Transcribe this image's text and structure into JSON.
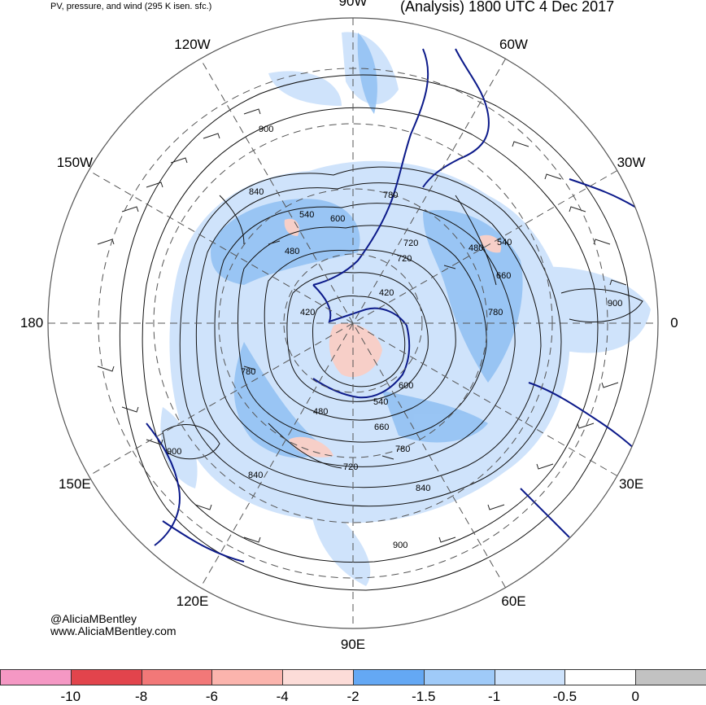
{
  "title_left": "PV, pressure, and wind (295 K isen. sfc.)",
  "title_right": "(Analysis) 1800 UTC 4 Dec 2017",
  "longitude_labels": [
    {
      "text": "90W",
      "angle": 90
    },
    {
      "text": "60W",
      "angle": 60
    },
    {
      "text": "30W",
      "angle": 30
    },
    {
      "text": "0",
      "angle": 0
    },
    {
      "text": "30E",
      "angle": -30
    },
    {
      "text": "60E",
      "angle": -60
    },
    {
      "text": "90E",
      "angle": -90
    },
    {
      "text": "120E",
      "angle": -120
    },
    {
      "text": "150E",
      "angle": -150
    },
    {
      "text": "180",
      "angle": 180
    },
    {
      "text": "150W",
      "angle": 150
    },
    {
      "text": "120W",
      "angle": 120
    }
  ],
  "contour_labels": [
    {
      "text": "900"
    },
    {
      "text": "840"
    },
    {
      "text": "540"
    },
    {
      "text": "600"
    },
    {
      "text": "480"
    },
    {
      "text": "420"
    },
    {
      "text": "780"
    },
    {
      "text": "720"
    },
    {
      "text": "480"
    },
    {
      "text": "540"
    },
    {
      "text": "660"
    },
    {
      "text": "720"
    },
    {
      "text": "780"
    },
    {
      "text": "900"
    },
    {
      "text": "420"
    },
    {
      "text": "600"
    },
    {
      "text": "540"
    },
    {
      "text": "480"
    },
    {
      "text": "660"
    },
    {
      "text": "780"
    },
    {
      "text": "720"
    },
    {
      "text": "840"
    },
    {
      "text": "900"
    },
    {
      "text": "900"
    },
    {
      "text": "840"
    },
    {
      "text": "780"
    }
  ],
  "credit": {
    "handle": "@AliciaMBentley",
    "site": "www.AliciaMBentley.com"
  },
  "colorbar": {
    "colors": [
      "#f598c4",
      "#e2444c",
      "#f27878",
      "#fbb4ad",
      "#fcdcd8",
      "#64a8f4",
      "#9fcaf8",
      "#cde2fb",
      "#ffffff",
      "#c2c2c2"
    ],
    "ticks": [
      "-10",
      "-8",
      "-6",
      "-4",
      "-2",
      "-1.5",
      "-1",
      "-0.5",
      "0"
    ]
  },
  "colors": {
    "coast": "#0c1a8a",
    "shade_light": "#cfe3fb",
    "shade_mid": "#8fbff2",
    "shade_pink": "#f7cfc8",
    "grid": "#555555"
  }
}
